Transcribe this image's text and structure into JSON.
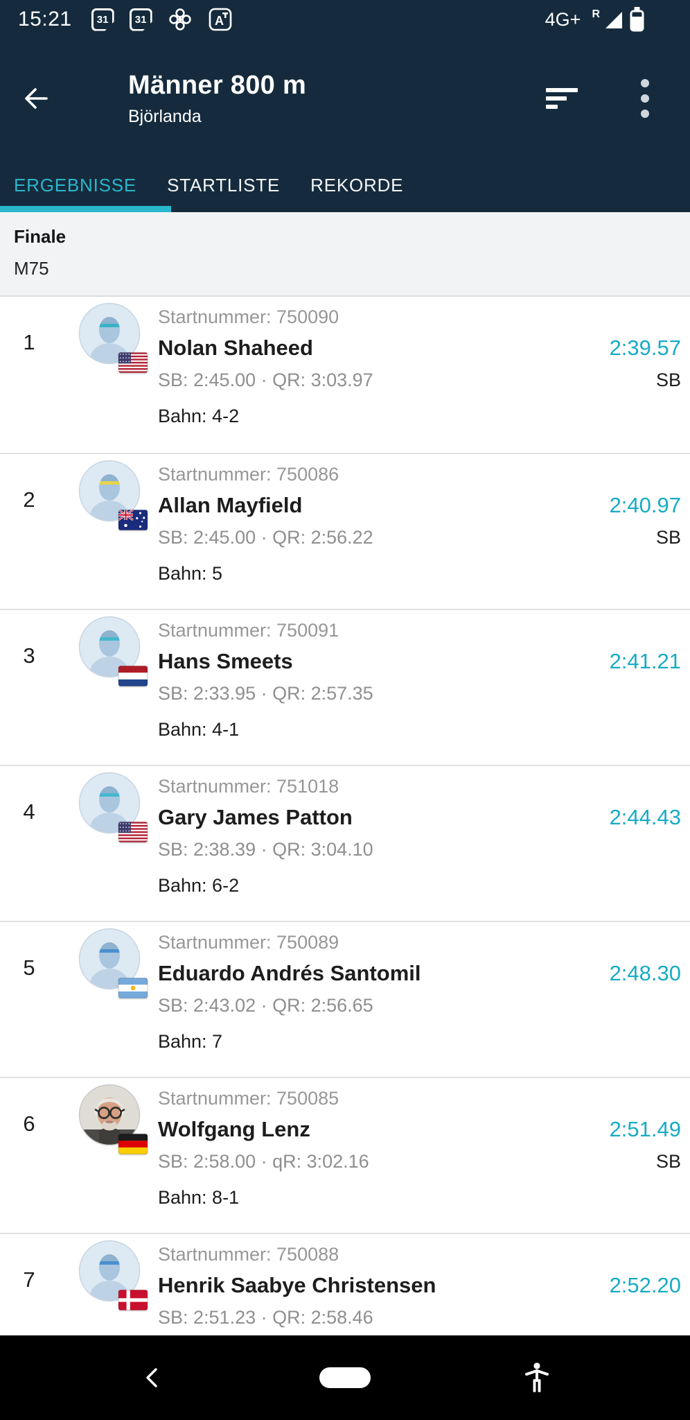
{
  "accent": "#29B7CD",
  "status_bar": {
    "time": "15:21",
    "calendar_day": "31",
    "network": "4G+",
    "roaming": "R"
  },
  "header": {
    "title": "Männer 800 m",
    "subtitle": "Björlanda"
  },
  "tabs": {
    "items": [
      {
        "label": "ERGEBNISSE"
      },
      {
        "label": "STARTLISTE"
      },
      {
        "label": "REKORDE"
      }
    ],
    "active_index": 0
  },
  "section": {
    "round": "Finale",
    "age_class": "M75"
  },
  "results": [
    {
      "rank": "1",
      "startnummer": "Startnummer: 750090",
      "name": "Nolan Shaheed",
      "time": "2:39.57",
      "time_note": "SB",
      "detail": "SB: 2:45.00 · QR: 3:03.97",
      "lane": "Bahn: 4-2",
      "country": "US",
      "avatar": "placeholder",
      "band_color": "#3BB3C6"
    },
    {
      "rank": "2",
      "startnummer": "Startnummer: 750086",
      "name": "Allan Mayfield",
      "time": "2:40.97",
      "time_note": "SB",
      "detail": "SB: 2:45.00 · QR: 2:56.22",
      "lane": "Bahn: 5",
      "country": "AU",
      "avatar": "placeholder",
      "band_color": "#E5D34B"
    },
    {
      "rank": "3",
      "startnummer": "Startnummer: 750091",
      "name": "Hans Smeets",
      "time": "2:41.21",
      "time_note": "",
      "detail": "SB: 2:33.95 · QR: 2:57.35",
      "lane": "Bahn: 4-1",
      "country": "NL",
      "avatar": "placeholder",
      "band_color": "#44B8CD"
    },
    {
      "rank": "4",
      "startnummer": "Startnummer: 751018",
      "name": "Gary James Patton",
      "time": "2:44.43",
      "time_note": "",
      "detail": "SB: 2:38.39 · QR: 3:04.10",
      "lane": "Bahn: 6-2",
      "country": "US",
      "avatar": "placeholder",
      "band_color": "#44B8CD"
    },
    {
      "rank": "5",
      "startnummer": "Startnummer: 750089",
      "name": "Eduardo Andrés Santomil",
      "time": "2:48.30",
      "time_note": "",
      "detail": "SB: 2:43.02 · QR: 2:56.65",
      "lane": "Bahn: 7",
      "country": "AR",
      "avatar": "placeholder",
      "band_color": "#4A90D0"
    },
    {
      "rank": "6",
      "startnummer": "Startnummer: 750085",
      "name": "Wolfgang Lenz",
      "time": "2:51.49",
      "time_note": "SB",
      "detail": "SB: 2:58.00 · qR: 3:02.16",
      "lane": "Bahn: 8-1",
      "country": "DE",
      "avatar": "photo",
      "band_color": ""
    },
    {
      "rank": "7",
      "startnummer": "Startnummer: 750088",
      "name": "Henrik Saabye Christensen",
      "time": "2:52.20",
      "time_note": "",
      "detail": "SB: 2:51.23 · QR: 2:58.46",
      "lane": "",
      "country": "DK",
      "avatar": "placeholder",
      "band_color": "#4A90D0"
    }
  ]
}
